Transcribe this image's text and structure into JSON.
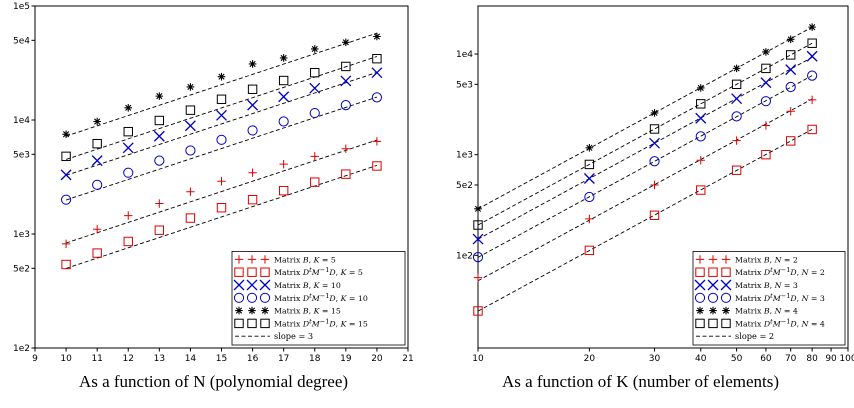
{
  "chart_data": [
    {
      "type": "line",
      "xscale": "linear",
      "yscale": "log",
      "xlim": [
        9,
        21
      ],
      "ylim": [
        100,
        100000
      ],
      "xticks": [
        "9",
        "10",
        "11",
        "12",
        "13",
        "14",
        "15",
        "16",
        "17",
        "18",
        "19",
        "20",
        "21"
      ],
      "yticks": [
        {
          "v": 100,
          "label": "1e2"
        },
        {
          "v": 500,
          "label": "5e2"
        },
        {
          "v": 1000,
          "label": "1e3"
        },
        {
          "v": 5000,
          "label": "5e3"
        },
        {
          "v": 10000,
          "label": "1e4"
        },
        {
          "v": 50000,
          "label": "5e4"
        },
        {
          "v": 100000,
          "label": "1e5"
        }
      ],
      "x": [
        10,
        11,
        12,
        13,
        14,
        15,
        16,
        17,
        18,
        19,
        20
      ],
      "series": [
        {
          "name": "Matrix B, K = 5",
          "marker": "plus",
          "color": "#dd0000",
          "values": [
            820,
            1100,
            1450,
            1850,
            2350,
            2900,
            3450,
            4100,
            4800,
            5600,
            6500
          ]
        },
        {
          "name": "Matrix D^t M^-1 D, K = 5",
          "marker": "square",
          "color": "#dd0000",
          "values": [
            540,
            680,
            860,
            1080,
            1380,
            1700,
            2000,
            2400,
            2850,
            3350,
            3950
          ]
        },
        {
          "name": "Matrix B, K = 10",
          "marker": "x",
          "color": "#0000cc",
          "values": [
            3300,
            4400,
            5700,
            7200,
            8900,
            11000,
            13500,
            16000,
            19000,
            22000,
            26000
          ]
        },
        {
          "name": "Matrix D^t M^-1 D, K = 10",
          "marker": "circle",
          "color": "#0000cc",
          "values": [
            2000,
            2700,
            3450,
            4400,
            5400,
            6700,
            8100,
            9700,
            11500,
            13500,
            15800
          ]
        },
        {
          "name": "Matrix B, K = 15",
          "marker": "star",
          "color": "#000000",
          "values": [
            7500,
            9700,
            12800,
            16200,
            19500,
            24000,
            31000,
            35000,
            42000,
            48000,
            54000
          ]
        },
        {
          "name": "Matrix D^t M^-1 D, K = 15",
          "marker": "square",
          "color": "#000000",
          "values": [
            4800,
            6200,
            7900,
            9900,
            12200,
            15200,
            18600,
            22200,
            26000,
            29500,
            34500
          ]
        }
      ],
      "slope_label": "slope = 3",
      "slope_exponent": 3,
      "legend_position": "lower-right",
      "caption": "As a function of N (polynomial degree)"
    },
    {
      "type": "line",
      "xscale": "log",
      "yscale": "log",
      "xlim": [
        10,
        100
      ],
      "ylim": [
        12,
        30000
      ],
      "xticks": [
        "10",
        "20",
        "30",
        "40",
        "50",
        "60",
        "70",
        "80",
        "90",
        "100"
      ],
      "yticks": [
        {
          "v": 100,
          "label": "1e2"
        },
        {
          "v": 500,
          "label": "5e2"
        },
        {
          "v": 1000,
          "label": "1e3"
        },
        {
          "v": 5000,
          "label": "5e3"
        },
        {
          "v": 10000,
          "label": "1e4"
        }
      ],
      "x": [
        10,
        20,
        30,
        40,
        50,
        60,
        70,
        80
      ],
      "series": [
        {
          "name": "Matrix B, N = 2",
          "marker": "plus",
          "color": "#dd0000",
          "values": [
            60,
            230,
            500,
            880,
            1380,
            1950,
            2700,
            3500
          ]
        },
        {
          "name": "Matrix D^t M^-1 D, N = 2",
          "marker": "square",
          "color": "#dd0000",
          "values": [
            28,
            112,
            250,
            445,
            700,
            1000,
            1370,
            1780
          ]
        },
        {
          "name": "Matrix B, N = 3",
          "marker": "x",
          "color": "#0000cc",
          "values": [
            145,
            580,
            1300,
            2300,
            3600,
            5200,
            7000,
            9500
          ]
        },
        {
          "name": "Matrix D^t M^-1 D, N = 3",
          "marker": "circle",
          "color": "#0000cc",
          "values": [
            96,
            380,
            860,
            1520,
            2400,
            3400,
            4700,
            6100
          ]
        },
        {
          "name": "Matrix B, N = 4",
          "marker": "star",
          "color": "#000000",
          "values": [
            290,
            1170,
            2600,
            4600,
            7200,
            10500,
            14000,
            18500
          ]
        },
        {
          "name": "Matrix D^t M^-1 D, N = 4",
          "marker": "square",
          "color": "#000000",
          "values": [
            200,
            800,
            1800,
            3200,
            5000,
            7200,
            9800,
            12800
          ]
        }
      ],
      "slope_label": "slope = 2",
      "slope_exponent": 2,
      "legend_position": "lower-right",
      "caption": "As a function of K (number of elements)"
    }
  ]
}
